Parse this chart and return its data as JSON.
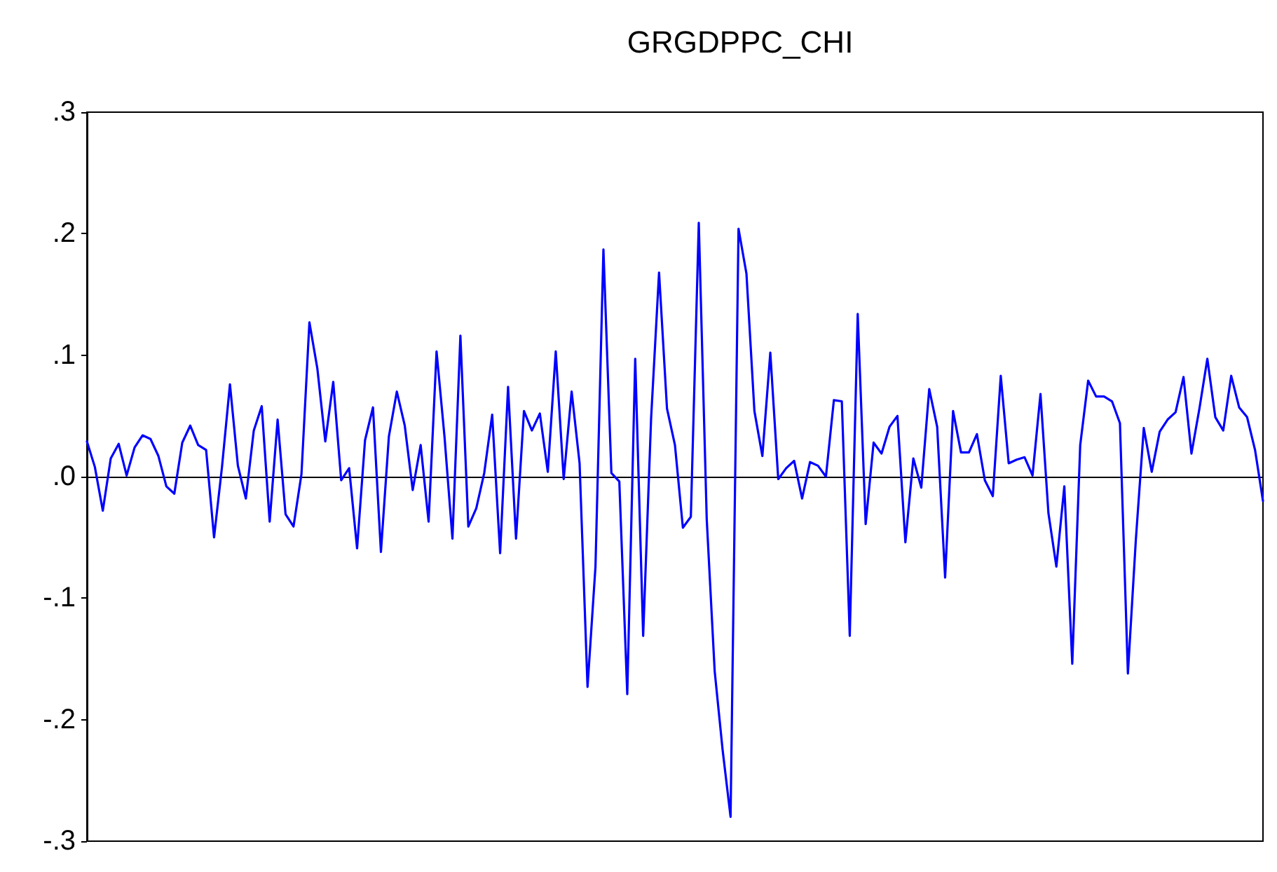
{
  "chart_data": {
    "type": "line",
    "title": "GRGDPPC_CHI",
    "categories": [
      null,
      null,
      null,
      null,
      null,
      null,
      null,
      null,
      null,
      null,
      null,
      null,
      null,
      null,
      null,
      null,
      null,
      null,
      null,
      null,
      null,
      null,
      null,
      null,
      null,
      null,
      null,
      null,
      null,
      null,
      null,
      null,
      null,
      null,
      null,
      null,
      null,
      null,
      null,
      null,
      null,
      null,
      null,
      null,
      null,
      null,
      null,
      null,
      null,
      null,
      null,
      null,
      null,
      null,
      null,
      null,
      null,
      null,
      null,
      null,
      null,
      null,
      null,
      null,
      null,
      null,
      null,
      null,
      null,
      null,
      null,
      null,
      null,
      null,
      null,
      null,
      null,
      null,
      null,
      null,
      null,
      null,
      null,
      null,
      null,
      null,
      null,
      null,
      null,
      null,
      null,
      null,
      null,
      null,
      null,
      null,
      null,
      null,
      null,
      null,
      null,
      null,
      null,
      null,
      null,
      null,
      null,
      null,
      null,
      null,
      null,
      null,
      null,
      null,
      null,
      null,
      null,
      null,
      null,
      null,
      null,
      null,
      null,
      null,
      null,
      null,
      null,
      null,
      null,
      null,
      null,
      null,
      null,
      null,
      null,
      null,
      null,
      null,
      null,
      null,
      null,
      null,
      null,
      null,
      null,
      null,
      null,
      null,
      null
    ],
    "series": [
      {
        "color": "#0000ff",
        "values": [
          0.029,
          0.008,
          -0.028,
          0.015,
          0.027,
          0.001,
          0.024,
          0.034,
          0.031,
          0.017,
          -0.008,
          -0.014,
          0.028,
          0.042,
          0.026,
          0.022,
          -0.05,
          0.008,
          0.076,
          0.009,
          -0.018,
          0.038,
          0.058,
          -0.037,
          0.047,
          -0.031,
          -0.041,
          0.002,
          0.127,
          0.089,
          0.029,
          0.078,
          -0.003,
          0.007,
          -0.059,
          0.03,
          0.057,
          -0.062,
          0.033,
          0.07,
          0.042,
          -0.011,
          0.026,
          -0.037,
          0.103,
          0.033,
          -0.051,
          0.116,
          -0.041,
          -0.026,
          0.003,
          0.051,
          -0.063,
          0.074,
          -0.051,
          0.054,
          0.038,
          0.052,
          0.004,
          0.103,
          -0.002,
          0.07,
          0.011,
          -0.173,
          -0.074,
          0.187,
          0.003,
          -0.004,
          -0.179,
          0.097,
          -0.131,
          0.048,
          0.168,
          0.056,
          0.026,
          -0.042,
          -0.033,
          0.209,
          -0.035,
          -0.16,
          -0.225,
          -0.28,
          0.204,
          0.167,
          0.054,
          0.017,
          0.102,
          -0.002,
          0.007,
          0.013,
          -0.018,
          0.012,
          0.009,
          0.0,
          0.063,
          0.062,
          -0.131,
          0.134,
          -0.039,
          0.028,
          0.019,
          0.041,
          0.05,
          -0.054,
          0.015,
          -0.009,
          0.072,
          0.041,
          -0.083,
          0.054,
          0.02,
          0.02,
          0.035,
          -0.003,
          -0.016,
          0.083,
          0.011,
          0.014,
          0.016,
          0.001,
          0.068,
          -0.03,
          -0.074,
          -0.008,
          -0.154,
          0.026,
          0.079,
          0.066,
          0.066,
          0.062,
          0.044,
          -0.162,
          -0.052,
          0.04,
          0.004,
          0.037,
          0.047,
          0.053,
          0.082,
          0.019,
          0.056,
          0.097,
          0.049,
          0.038,
          0.083,
          0.057,
          0.049,
          0.022,
          -0.02
        ]
      }
    ],
    "ylim": [
      -0.3,
      0.3
    ],
    "yticks": [
      {
        "value": -0.3,
        "label": "-.3"
      },
      {
        "value": -0.2,
        "label": "-.2"
      },
      {
        "value": -0.1,
        "label": "-.1"
      },
      {
        "value": 0,
        "label": ".0"
      },
      {
        "value": 0.1,
        "label": ".1"
      },
      {
        "value": 0.2,
        "label": ".2"
      },
      {
        "value": 0.3,
        "label": ".3"
      }
    ],
    "marker": "none",
    "line_style": "solid",
    "tick_labels": "y"
  }
}
